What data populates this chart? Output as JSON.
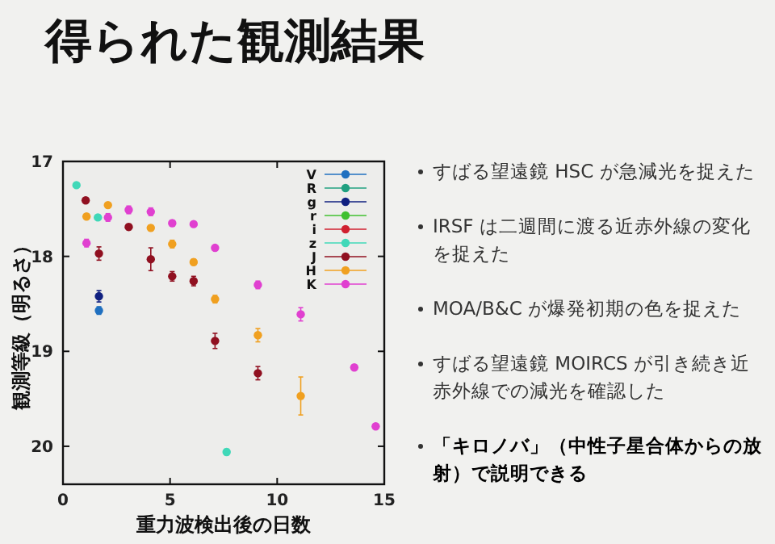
{
  "chart_data": {
    "type": "scatter",
    "title": "得られた観測結果",
    "xlabel": "重力波検出後の日数",
    "ylabel": "観測等級（明るさ）",
    "xlim": [
      0,
      15
    ],
    "xticks": [
      0,
      5,
      10,
      15
    ],
    "ylim": [
      20.4,
      17
    ],
    "yticks": [
      17,
      18,
      19,
      20
    ],
    "grid": false,
    "legend": "top right",
    "marker": "circle",
    "series": [
      {
        "name": "V",
        "color": "#2070c0",
        "x": [
          1.68
        ],
        "values": [
          18.57
        ],
        "errors": [
          0.04
        ]
      },
      {
        "name": "R",
        "color": "#20a080"
      },
      {
        "name": "g",
        "color": "#102080",
        "x": [
          1.68
        ],
        "values": [
          18.42
        ],
        "errors": [
          0.06
        ]
      },
      {
        "name": "r",
        "color": "#40c030"
      },
      {
        "name": "i",
        "color": "#d02030"
      },
      {
        "name": "z",
        "color": "#40d8b8",
        "x": [
          0.63,
          1.63,
          7.64
        ],
        "values": [
          17.25,
          17.59,
          20.06
        ],
        "errors": [
          0.02,
          0.02,
          0.03
        ]
      },
      {
        "name": "J",
        "color": "#901020",
        "x": [
          1.06,
          1.68,
          3.07,
          4.1,
          5.1,
          6.1,
          7.1,
          9.1
        ],
        "values": [
          17.41,
          17.97,
          17.69,
          18.03,
          18.21,
          18.26,
          18.89,
          19.23
        ],
        "errors": [
          0.02,
          0.07,
          0.03,
          0.12,
          0.05,
          0.05,
          0.08,
          0.07
        ]
      },
      {
        "name": "H",
        "color": "#f0a020",
        "x": [
          1.1,
          2.1,
          4.1,
          5.1,
          6.1,
          7.1,
          9.1,
          11.1
        ],
        "values": [
          17.58,
          17.46,
          17.7,
          17.87,
          18.06,
          18.45,
          18.83,
          19.47
        ],
        "errors": [
          0.02,
          0.02,
          0.03,
          0.04,
          0.03,
          0.04,
          0.07,
          0.2
        ]
      },
      {
        "name": "K",
        "color": "#e040d0",
        "x": [
          1.1,
          2.1,
          3.07,
          4.1,
          5.1,
          6.1,
          7.1,
          9.1,
          11.1,
          13.6,
          14.6
        ],
        "values": [
          17.86,
          17.59,
          17.51,
          17.53,
          17.65,
          17.66,
          17.91,
          18.3,
          18.61,
          19.17,
          19.79
        ],
        "errors": [
          0.04,
          0.04,
          0.04,
          0.04,
          0.03,
          0.02,
          0.02,
          0.04,
          0.07,
          0.02,
          0.02
        ]
      }
    ],
    "annotations": [
      "すばる望遠鏡 HSC が急減光を捉えた",
      "IRSF は二週間に渡る近赤外線の変化を捉えた",
      "MOA/B&C が爆発初期の色を捉えた",
      "すばる望遠鏡 MOIRCS が引き続き近赤外線での減光を確認した",
      "「キロノバ」（中性子星合体からの放射）で説明できる"
    ]
  }
}
